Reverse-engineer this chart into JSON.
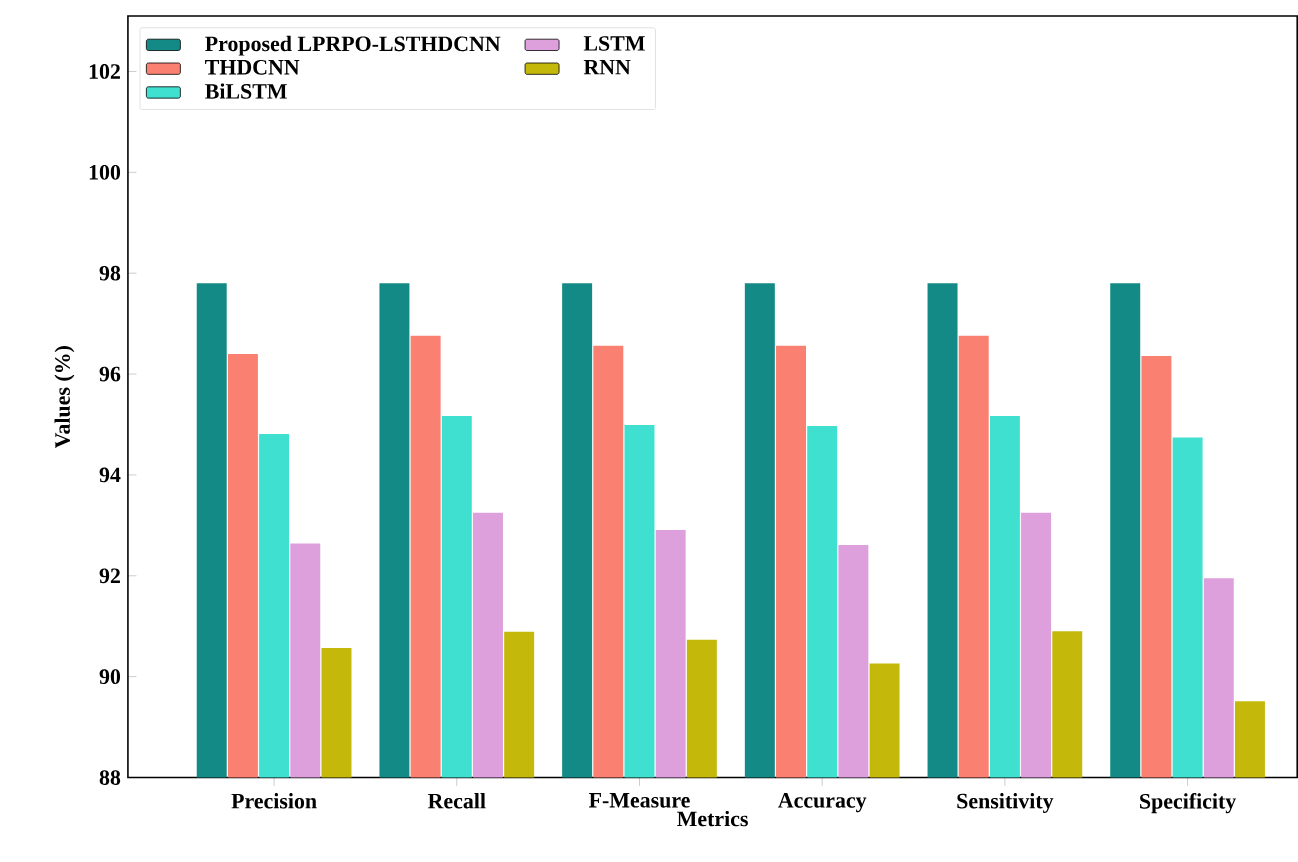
{
  "chart_data": {
    "type": "bar",
    "xlabel": "Metrics",
    "ylabel": "Values (%)",
    "categories": [
      "Precision",
      "Recall",
      "F-Measure",
      "Accuracy",
      "Sensitivity",
      "Specificity"
    ],
    "series": [
      {
        "name": "Proposed LPRPO-LSTHDCNN",
        "color": "#138a85",
        "values": [
          97.8,
          97.8,
          97.8,
          97.8,
          97.8,
          97.8
        ]
      },
      {
        "name": "THDCNN",
        "color": "#fa8072",
        "values": [
          96.4,
          96.76,
          96.56,
          96.56,
          96.76,
          96.36
        ]
      },
      {
        "name": "BiLSTM",
        "color": "#40e0d0",
        "values": [
          94.81,
          95.17,
          94.99,
          94.97,
          95.17,
          94.74
        ]
      },
      {
        "name": "LSTM",
        "color": "#dda0dd",
        "values": [
          92.64,
          93.25,
          92.91,
          92.61,
          93.25,
          91.95
        ]
      },
      {
        "name": "RNN",
        "color": "#c4b80b",
        "values": [
          90.57,
          90.89,
          90.73,
          90.26,
          90.9,
          89.51
        ]
      }
    ],
    "ylim": [
      88,
      103.1
    ],
    "yticks": [
      88,
      90,
      92,
      94,
      96,
      98,
      100,
      102
    ],
    "legend": "top left"
  }
}
